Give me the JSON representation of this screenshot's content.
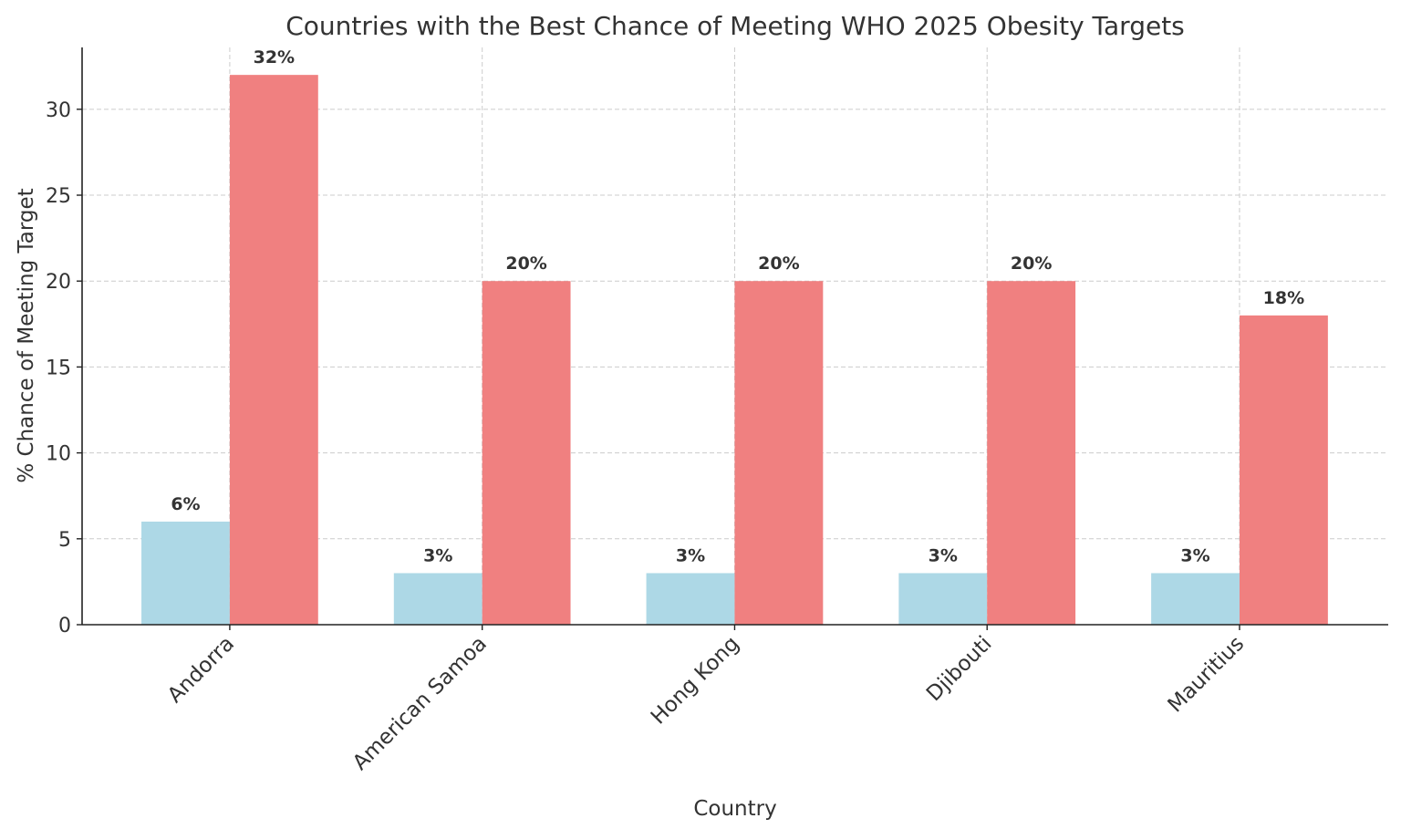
{
  "chart_data": {
    "type": "bar",
    "title": "Countries with the Best Chance of Meeting WHO 2025 Obesity Targets",
    "xlabel": "Country",
    "ylabel": "% Chance of Meeting Target",
    "categories": [
      "Andorra",
      "American Samoa",
      "Hong Kong",
      "Djibouti",
      "Mauritius"
    ],
    "series": [
      {
        "values": [
          6,
          3,
          3,
          3,
          3
        ],
        "color": "#add8e6",
        "labels": [
          "6%",
          "3%",
          "3%",
          "3%",
          "3%"
        ]
      },
      {
        "values": [
          32,
          20,
          20,
          20,
          18
        ],
        "color": "#f08080",
        "labels": [
          "32%",
          "20%",
          "20%",
          "20%",
          "18%"
        ]
      }
    ],
    "ylim": [
      0,
      33.6
    ],
    "yticks": [
      0,
      5,
      10,
      15,
      20,
      25,
      30
    ],
    "grid": true,
    "legend": "none"
  }
}
